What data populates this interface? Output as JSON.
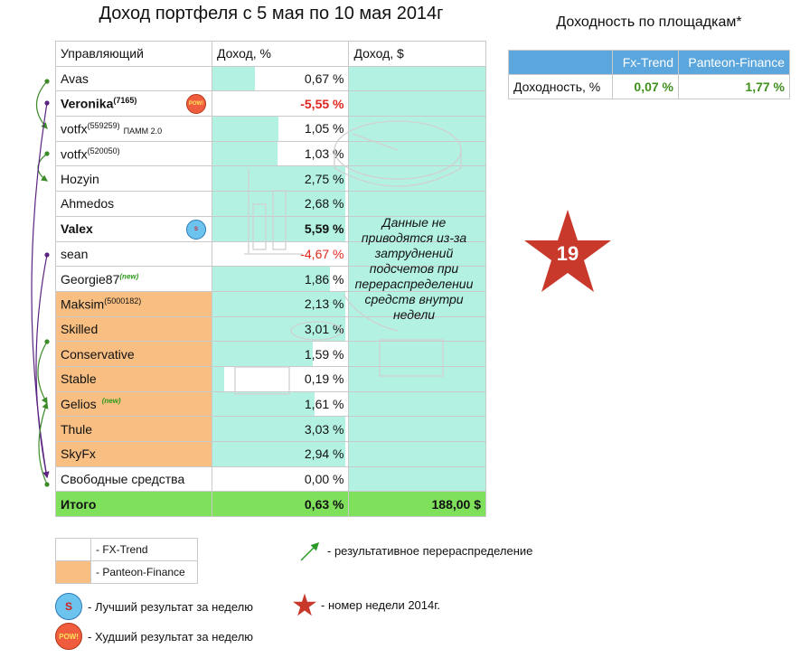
{
  "title": "Доход портфеля с 5 мая по 10 мая 2014г",
  "side_title": "Доходность по площадкам*",
  "headers": [
    "Управляющий",
    "Доход, %",
    "Доход, $"
  ],
  "rows": [
    {
      "name": "Avas",
      "sup": "",
      "badge": "",
      "value_text": "0,67 %",
      "value": 0.67,
      "platform": "FX-Trend",
      "bold": false
    },
    {
      "name": "Veronika",
      "sup": "(7165)",
      "badge": "POW!",
      "value_text": "-5,55 %",
      "value": -5.55,
      "platform": "FX-Trend",
      "bold": true
    },
    {
      "name": "votfx",
      "sup": "(559259)",
      "note": "ПАММ 2.0",
      "badge": "",
      "value_text": "1,05 %",
      "value": 1.05,
      "platform": "FX-Trend",
      "bold": false
    },
    {
      "name": "votfx",
      "sup": "(520050)",
      "badge": "",
      "value_text": "1,03 %",
      "value": 1.03,
      "platform": "FX-Trend",
      "bold": false
    },
    {
      "name": "Hozyin",
      "sup": "",
      "badge": "",
      "value_text": "2,75 %",
      "value": 2.75,
      "platform": "FX-Trend",
      "bold": false
    },
    {
      "name": "Ahmedos",
      "sup": "",
      "badge": "",
      "value_text": "2,68 %",
      "value": 2.68,
      "platform": "FX-Trend",
      "bold": false
    },
    {
      "name": "Valex",
      "sup": "",
      "badge": "S",
      "value_text": "5,59 %",
      "value": 5.59,
      "platform": "FX-Trend",
      "bold": true
    },
    {
      "name": "sean",
      "sup": "",
      "badge": "",
      "value_text": "-4,67 %",
      "value": -4.67,
      "platform": "FX-Trend",
      "bold": false
    },
    {
      "name": "Georgie87",
      "sup": "",
      "new": "(new)",
      "badge": "",
      "value_text": "1,86 %",
      "value": 1.86,
      "platform": "FX-Trend",
      "bold": false
    },
    {
      "name": "Maksim",
      "sup": "(5000182)",
      "badge": "",
      "value_text": "2,13 %",
      "value": 2.13,
      "platform": "Panteon-Finance",
      "bold": false
    },
    {
      "name": "Skilled",
      "sup": "",
      "badge": "",
      "value_text": "3,01 %",
      "value": 3.01,
      "platform": "Panteon-Finance",
      "bold": false
    },
    {
      "name": "Conservative",
      "sup": "",
      "badge": "",
      "value_text": "1,59 %",
      "value": 1.59,
      "platform": "Panteon-Finance",
      "bold": false
    },
    {
      "name": "Stable",
      "sup": "",
      "badge": "",
      "value_text": "0,19 %",
      "value": 0.19,
      "platform": "Panteon-Finance",
      "bold": false
    },
    {
      "name": "Gelios",
      "sup": "",
      "new": "(new)",
      "badge": "",
      "value_text": "1,61 %",
      "value": 1.61,
      "platform": "Panteon-Finance",
      "bold": false
    },
    {
      "name": "Thule",
      "sup": "",
      "badge": "",
      "value_text": "3,03 %",
      "value": 3.03,
      "platform": "Panteon-Finance",
      "bold": false
    },
    {
      "name": "SkyFx",
      "sup": "",
      "badge": "",
      "value_text": "2,94 %",
      "value": 2.94,
      "platform": "Panteon-Finance",
      "bold": false
    },
    {
      "name": "Свободные средства",
      "sup": "",
      "badge": "",
      "value_text": "0,00 %",
      "value": 0.0,
      "platform": "FX-Trend",
      "bold": false
    }
  ],
  "total": {
    "label": "Итого",
    "percent": "0,63 %",
    "amount": "188,00 $"
  },
  "income_note": "Данные не приводятся из-за затруднений подсчетов при перераспределении средств внутри недели",
  "side_table": {
    "headers": [
      "Fx-Trend",
      "Panteon-Finance"
    ],
    "row_label": "Доходность, %",
    "values": [
      "0,07 %",
      "1,77 %"
    ]
  },
  "week_number": "19",
  "legend": {
    "fx_trend": "- FX-Trend",
    "panteon": "- Panteon-Finance",
    "arrow": "-  результативное перераспределение",
    "best": "- Лучший результат за неделю",
    "worst": "- Худший результат за неделю",
    "star": "- номер недели 2014г."
  },
  "colors": {
    "panteon": "#f9bf82",
    "bar": "#b3f2e2",
    "total": "#7fe15b",
    "negative": "#e0251d",
    "positive_green": "#3e8f1c",
    "side_header": "#5aa6dd",
    "star": "#c8392c"
  },
  "chart_data": {
    "type": "table",
    "title": "Доход портфеля с 5 мая по 10 мая 2014г",
    "columns": [
      "Управляющий",
      "Доход, %",
      "Доход, $"
    ],
    "categories": [
      "Avas",
      "Veronika (7165)",
      "votfx (559259) ПАММ 2.0",
      "votfx (520050)",
      "Hozyin",
      "Ahmedos",
      "Valex",
      "sean",
      "Georgie87",
      "Maksim (5000182)",
      "Skilled",
      "Conservative",
      "Stable",
      "Gelios",
      "Thule",
      "SkyFx",
      "Свободные средства"
    ],
    "values": [
      0.67,
      -5.55,
      1.05,
      1.03,
      2.75,
      2.68,
      5.59,
      -4.67,
      1.86,
      2.13,
      3.01,
      1.59,
      0.19,
      1.61,
      3.03,
      2.94,
      0.0
    ],
    "total_percent": 0.63,
    "total_amount_usd": 188.0
  }
}
